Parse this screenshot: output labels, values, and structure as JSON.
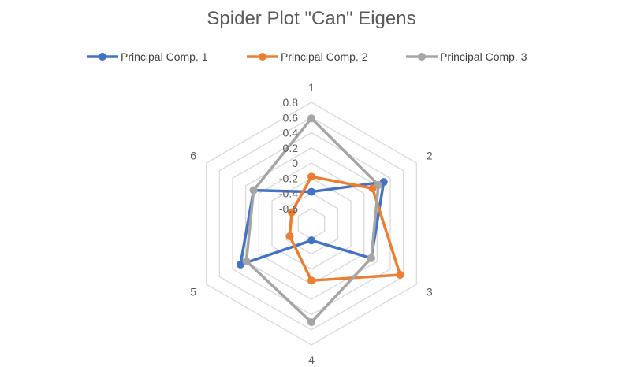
{
  "chart_data": {
    "type": "radar",
    "title": "Spider Plot \"Can\" Eigens",
    "categories": [
      "1",
      "2",
      "3",
      "4",
      "5",
      "6"
    ],
    "r_axis": {
      "min": -0.8,
      "max": 0.8,
      "step": 0.2,
      "tick_labels": [
        "-0.6",
        "-0.4",
        "-0.2",
        "0",
        "0.2",
        "0.4",
        "0.6",
        "0.8"
      ]
    },
    "grid": true,
    "legend_position": "top",
    "series": [
      {
        "name": "Principal Comp. 1",
        "color": "#4472C4",
        "values": [
          -0.38,
          0.3,
          0.11,
          -0.58,
          0.28,
          0.08
        ]
      },
      {
        "name": "Principal Comp. 2",
        "color": "#ED7D31",
        "values": [
          -0.18,
          0.13,
          0.55,
          -0.05,
          -0.47,
          -0.5
        ]
      },
      {
        "name": "Principal Comp. 3",
        "color": "#A5A5A5",
        "values": [
          0.59,
          0.22,
          0.11,
          0.5,
          0.19,
          0.08
        ]
      }
    ]
  }
}
